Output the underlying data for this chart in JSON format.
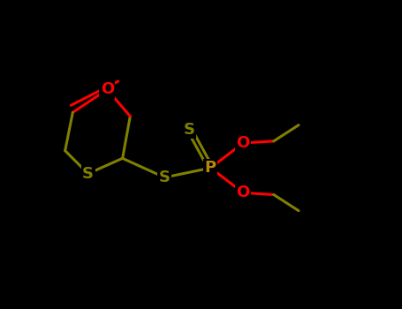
{
  "background_color": "#000000",
  "S_color": "#808000",
  "O_color": "#ff0000",
  "P_color": "#b8860b",
  "C_color": "#808000",
  "line_width": 2.2,
  "label_fontsize": 13,
  "figsize": [
    4.55,
    3.5
  ],
  "dpi": 100,
  "xlim": [
    0.0,
    10.5
  ],
  "ylim": [
    1.5,
    7.5
  ]
}
